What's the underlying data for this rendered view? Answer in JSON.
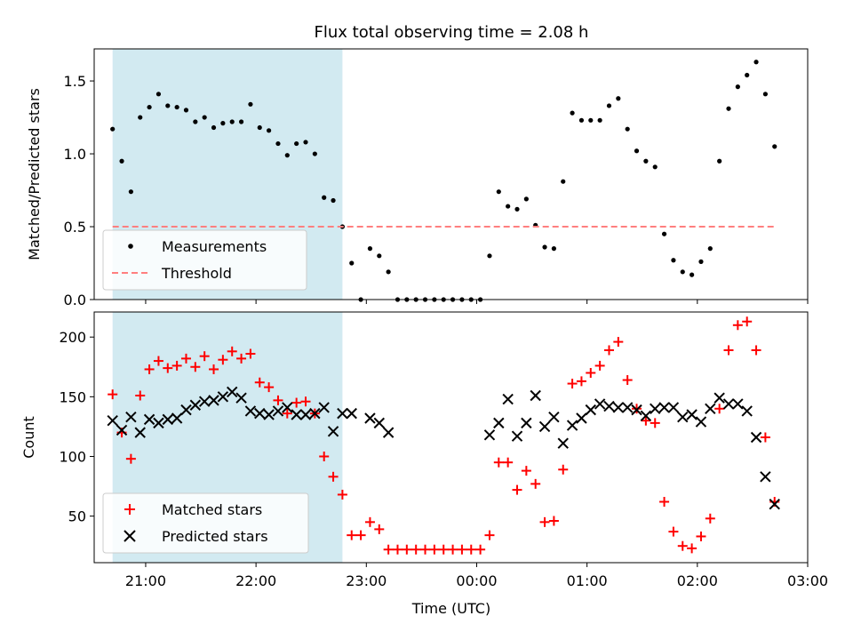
{
  "title": "Flux total observing time = 2.08 h",
  "colors": {
    "shade": "#add8e6",
    "measurement": "#000000",
    "threshold": "#ff7f7f",
    "matched": "#ff0000",
    "predicted": "#000000"
  },
  "chart_data": [
    {
      "type": "scatter",
      "ylabel": "Matched/Predicted stars",
      "xlim": [
        "20:32",
        "03:00"
      ],
      "ylim": [
        0,
        1.72
      ],
      "yticks": [
        "0.0",
        "0.5",
        "1.0",
        "1.5"
      ],
      "grid": false,
      "legend_position": "lower-left",
      "shaded_interval": [
        "20:42",
        "22:47"
      ],
      "series": [
        {
          "name": "Measurements",
          "marker": "dot",
          "points": [
            [
              "20:42",
              1.17
            ],
            [
              "20:47",
              0.95
            ],
            [
              "20:52",
              0.74
            ],
            [
              "20:57",
              1.25
            ],
            [
              "21:02",
              1.32
            ],
            [
              "21:07",
              1.41
            ],
            [
              "21:12",
              1.33
            ],
            [
              "21:17",
              1.32
            ],
            [
              "21:22",
              1.3
            ],
            [
              "21:27",
              1.22
            ],
            [
              "21:32",
              1.25
            ],
            [
              "21:37",
              1.18
            ],
            [
              "21:42",
              1.21
            ],
            [
              "21:47",
              1.22
            ],
            [
              "21:52",
              1.22
            ],
            [
              "21:57",
              1.34
            ],
            [
              "22:02",
              1.18
            ],
            [
              "22:07",
              1.16
            ],
            [
              "22:12",
              1.07
            ],
            [
              "22:17",
              0.99
            ],
            [
              "22:22",
              1.07
            ],
            [
              "22:27",
              1.08
            ],
            [
              "22:32",
              1.0
            ],
            [
              "22:37",
              0.7
            ],
            [
              "22:42",
              0.68
            ],
            [
              "22:47",
              0.5
            ],
            [
              "22:52",
              0.25
            ],
            [
              "22:57",
              0.0
            ],
            [
              "23:02",
              0.35
            ],
            [
              "23:07",
              0.3
            ],
            [
              "23:12",
              0.19
            ],
            [
              "23:17",
              0.0
            ],
            [
              "23:22",
              0.0
            ],
            [
              "23:27",
              0.0
            ],
            [
              "23:32",
              0.0
            ],
            [
              "23:37",
              0.0
            ],
            [
              "23:42",
              0.0
            ],
            [
              "23:47",
              0.0
            ],
            [
              "23:52",
              0.0
            ],
            [
              "23:57",
              0.0
            ],
            [
              "00:02",
              0.0
            ],
            [
              "00:07",
              0.3
            ],
            [
              "00:12",
              0.74
            ],
            [
              "00:17",
              0.64
            ],
            [
              "00:22",
              0.62
            ],
            [
              "00:27",
              0.69
            ],
            [
              "00:32",
              0.51
            ],
            [
              "00:37",
              0.36
            ],
            [
              "00:42",
              0.35
            ],
            [
              "00:47",
              0.81
            ],
            [
              "00:52",
              1.28
            ],
            [
              "00:57",
              1.23
            ],
            [
              "01:02",
              1.23
            ],
            [
              "01:07",
              1.23
            ],
            [
              "01:12",
              1.33
            ],
            [
              "01:17",
              1.38
            ],
            [
              "01:22",
              1.17
            ],
            [
              "01:27",
              1.02
            ],
            [
              "01:32",
              0.95
            ],
            [
              "01:37",
              0.91
            ],
            [
              "01:42",
              0.45
            ],
            [
              "01:47",
              0.27
            ],
            [
              "01:52",
              0.19
            ],
            [
              "01:57",
              0.17
            ],
            [
              "02:02",
              0.26
            ],
            [
              "02:07",
              0.35
            ],
            [
              "02:12",
              0.95
            ],
            [
              "02:17",
              1.31
            ],
            [
              "02:22",
              1.46
            ],
            [
              "02:27",
              1.54
            ],
            [
              "02:32",
              1.63
            ],
            [
              "02:37",
              1.41
            ],
            [
              "02:42",
              1.05
            ]
          ]
        },
        {
          "name": "Threshold",
          "style": "dashed",
          "points": [
            [
              "20:42",
              0.5
            ],
            [
              "02:42",
              0.5
            ]
          ]
        }
      ]
    },
    {
      "type": "scatter",
      "xlabel": "Time (UTC)",
      "ylabel": "Count",
      "xlim": [
        "20:32",
        "03:00"
      ],
      "ylim": [
        11,
        221
      ],
      "xticks": [
        "21:00",
        "22:00",
        "23:00",
        "00:00",
        "01:00",
        "02:00",
        "03:00"
      ],
      "yticks": [
        "50",
        "100",
        "150",
        "200"
      ],
      "grid": false,
      "legend_position": "lower-left",
      "shaded_interval": [
        "20:42",
        "22:47"
      ],
      "series": [
        {
          "name": "Matched stars",
          "marker": "plus",
          "points": [
            [
              "20:42",
              152
            ],
            [
              "20:47",
              120
            ],
            [
              "20:52",
              98
            ],
            [
              "20:57",
              151
            ],
            [
              "21:02",
              173
            ],
            [
              "21:07",
              180
            ],
            [
              "21:12",
              174
            ],
            [
              "21:17",
              176
            ],
            [
              "21:22",
              182
            ],
            [
              "21:27",
              175
            ],
            [
              "21:32",
              184
            ],
            [
              "21:37",
              173
            ],
            [
              "21:42",
              181
            ],
            [
              "21:47",
              188
            ],
            [
              "21:52",
              182
            ],
            [
              "21:57",
              186
            ],
            [
              "22:02",
              162
            ],
            [
              "22:07",
              158
            ],
            [
              "22:12",
              147
            ],
            [
              "22:17",
              136
            ],
            [
              "22:22",
              145
            ],
            [
              "22:27",
              146
            ],
            [
              "22:32",
              136
            ],
            [
              "22:37",
              100
            ],
            [
              "22:42",
              83
            ],
            [
              "22:47",
              68
            ],
            [
              "22:52",
              34
            ],
            [
              "22:57",
              34
            ],
            [
              "23:02",
              45
            ],
            [
              "23:07",
              39
            ],
            [
              "23:12",
              22
            ],
            [
              "23:17",
              22
            ],
            [
              "23:22",
              22
            ],
            [
              "23:27",
              22
            ],
            [
              "23:32",
              22
            ],
            [
              "23:37",
              22
            ],
            [
              "23:42",
              22
            ],
            [
              "23:47",
              22
            ],
            [
              "23:52",
              22
            ],
            [
              "23:57",
              22
            ],
            [
              "00:02",
              22
            ],
            [
              "00:07",
              34
            ],
            [
              "00:12",
              95
            ],
            [
              "00:17",
              95
            ],
            [
              "00:22",
              72
            ],
            [
              "00:27",
              88
            ],
            [
              "00:32",
              77
            ],
            [
              "00:37",
              45
            ],
            [
              "00:42",
              46
            ],
            [
              "00:47",
              89
            ],
            [
              "00:52",
              161
            ],
            [
              "00:57",
              163
            ],
            [
              "01:02",
              170
            ],
            [
              "01:07",
              176
            ],
            [
              "01:12",
              189
            ],
            [
              "01:17",
              196
            ],
            [
              "01:22",
              164
            ],
            [
              "01:27",
              140
            ],
            [
              "01:32",
              130
            ],
            [
              "01:37",
              128
            ],
            [
              "01:42",
              62
            ],
            [
              "01:47",
              37
            ],
            [
              "01:52",
              25
            ],
            [
              "01:57",
              23
            ],
            [
              "02:02",
              33
            ],
            [
              "02:07",
              48
            ],
            [
              "02:12",
              140
            ],
            [
              "02:17",
              189
            ],
            [
              "02:22",
              210
            ],
            [
              "02:27",
              213
            ],
            [
              "02:32",
              189
            ],
            [
              "02:37",
              116
            ],
            [
              "02:42",
              62
            ]
          ]
        },
        {
          "name": "Predicted stars",
          "marker": "x",
          "points": [
            [
              "20:42",
              130
            ],
            [
              "20:47",
              122
            ],
            [
              "20:52",
              133
            ],
            [
              "20:57",
              120
            ],
            [
              "21:02",
              131
            ],
            [
              "21:07",
              128
            ],
            [
              "21:12",
              131
            ],
            [
              "21:17",
              132
            ],
            [
              "21:22",
              139
            ],
            [
              "21:27",
              143
            ],
            [
              "21:32",
              146
            ],
            [
              "21:37",
              147
            ],
            [
              "21:42",
              150
            ],
            [
              "21:47",
              154
            ],
            [
              "21:52",
              149
            ],
            [
              "21:57",
              138
            ],
            [
              "22:02",
              136
            ],
            [
              "22:07",
              135
            ],
            [
              "22:12",
              138
            ],
            [
              "22:17",
              141
            ],
            [
              "22:22",
              135
            ],
            [
              "22:27",
              135
            ],
            [
              "22:32",
              136
            ],
            [
              "22:37",
              141
            ],
            [
              "22:42",
              121
            ],
            [
              "22:47",
              136
            ],
            [
              "22:52",
              136
            ],
            [
              "23:02",
              132
            ],
            [
              "23:07",
              128
            ],
            [
              "23:12",
              120
            ],
            [
              "00:07",
              118
            ],
            [
              "00:12",
              128
            ],
            [
              "00:17",
              148
            ],
            [
              "00:22",
              117
            ],
            [
              "00:27",
              128
            ],
            [
              "00:32",
              151
            ],
            [
              "00:37",
              125
            ],
            [
              "00:42",
              133
            ],
            [
              "00:47",
              111
            ],
            [
              "00:52",
              126
            ],
            [
              "00:57",
              132
            ],
            [
              "01:02",
              139
            ],
            [
              "01:07",
              144
            ],
            [
              "01:12",
              142
            ],
            [
              "01:17",
              141
            ],
            [
              "01:22",
              141
            ],
            [
              "01:27",
              139
            ],
            [
              "01:32",
              134
            ],
            [
              "01:37",
              140
            ],
            [
              "01:42",
              141
            ],
            [
              "01:47",
              141
            ],
            [
              "01:52",
              133
            ],
            [
              "01:57",
              135
            ],
            [
              "02:02",
              129
            ],
            [
              "02:07",
              140
            ],
            [
              "02:12",
              149
            ],
            [
              "02:17",
              144
            ],
            [
              "02:22",
              144
            ],
            [
              "02:27",
              138
            ],
            [
              "02:32",
              116
            ],
            [
              "02:37",
              83
            ],
            [
              "02:42",
              60
            ]
          ]
        }
      ]
    }
  ]
}
